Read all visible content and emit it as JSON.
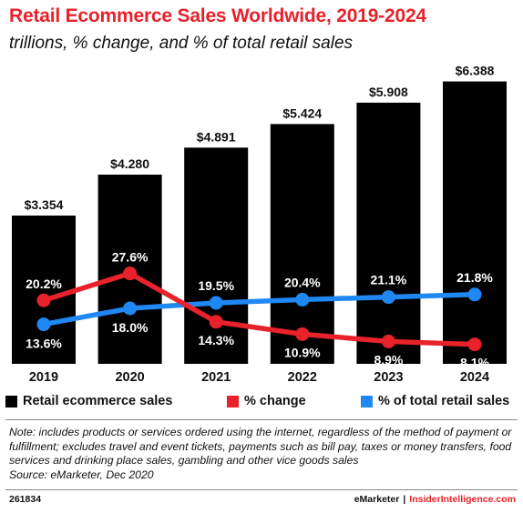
{
  "title": "Retail Ecommerce Sales Worldwide, 2019-2024",
  "subtitle": "trillions, % change, and % of total retail sales",
  "colors": {
    "title": "#e8222a",
    "bars": "#000000",
    "change_line": "#e8222a",
    "share_line": "#1f88f2"
  },
  "chart_data": {
    "type": "bar",
    "categories": [
      "2019",
      "2020",
      "2021",
      "2022",
      "2023",
      "2024"
    ],
    "series": [
      {
        "name": "Retail ecommerce sales",
        "type": "bar",
        "values": [
          3.354,
          4.28,
          4.891,
          5.424,
          5.908,
          6.388
        ],
        "labels": [
          "$3.354",
          "$4.280",
          "$4.891",
          "$5.424",
          "$5.908",
          "$6.388"
        ]
      },
      {
        "name": "% change",
        "type": "line",
        "values": [
          20.2,
          27.6,
          14.3,
          10.9,
          8.9,
          8.1
        ],
        "labels": [
          "20.2%",
          "27.6%",
          "14.3%",
          "10.9%",
          "8.9%",
          "8.1%"
        ]
      },
      {
        "name": "% of total retail sales",
        "type": "line",
        "values": [
          13.6,
          18.0,
          19.5,
          20.4,
          21.1,
          21.8
        ],
        "labels": [
          "13.6%",
          "18.0%",
          "19.5%",
          "20.4%",
          "21.1%",
          "21.8%"
        ]
      }
    ],
    "legend_position": "bottom",
    "grid": false
  },
  "legend": {
    "items": [
      "Retail ecommerce sales",
      "% change",
      "% of total retail sales"
    ]
  },
  "note": "Note: includes products or services ordered using the internet, regardless of the method of payment or fulfillment; excludes travel and event tickets, payments such as bill pay, taxes or money transfers, food services and drinking place sales, gambling and other vice goods sales",
  "source": "Source: eMarketer, Dec 2020",
  "footer": {
    "chart_id": "261834",
    "brand_1": "eMarketer",
    "separator": "|",
    "brand_2": "InsiderIntelligence.com"
  }
}
